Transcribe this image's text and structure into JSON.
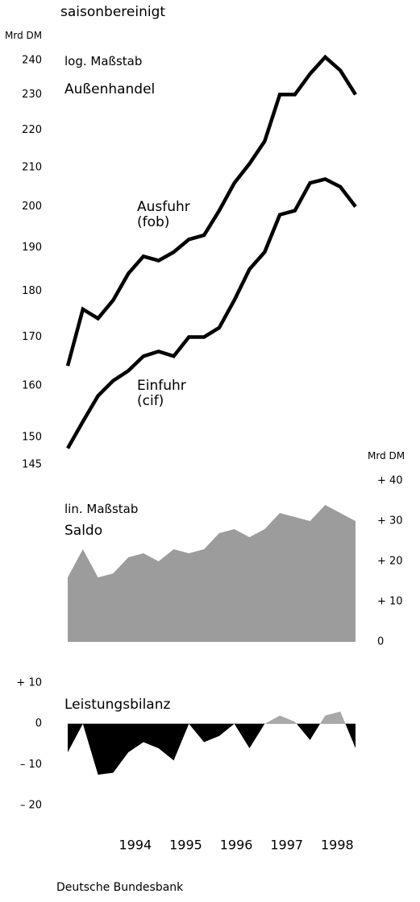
{
  "chart_data": [
    {
      "type": "line",
      "subtitle": "saisonbereinigt",
      "y_label": "Mrd DM",
      "scale_label": "log. Maßstab",
      "title": "Außenhandel",
      "yscale": "log",
      "ylim": [
        145,
        240
      ],
      "yticks": [
        145,
        150,
        160,
        170,
        180,
        190,
        200,
        210,
        220,
        230,
        240
      ],
      "xlim": [
        1993.3,
        1999.0
      ],
      "x": [
        1993.3,
        1993.6,
        1993.9,
        1994.2,
        1994.5,
        1994.8,
        1995.1,
        1995.4,
        1995.7,
        1996.0,
        1996.3,
        1996.6,
        1996.9,
        1997.2,
        1997.5,
        1997.8,
        1998.1,
        1998.4,
        1998.7,
        1999.0
      ],
      "series": [
        {
          "name": "Ausfuhr (fob)",
          "color": "#000000",
          "values": [
            164,
            176,
            174,
            178,
            184,
            188,
            187,
            189,
            192,
            193,
            199,
            206,
            211,
            217,
            230,
            230,
            236,
            241,
            237,
            230
          ]
        },
        {
          "name": "Einfuhr (cif)",
          "color": "#000000",
          "values": [
            148,
            153,
            158,
            161,
            163,
            166,
            167,
            166,
            170,
            170,
            172,
            178,
            185,
            189,
            198,
            199,
            206,
            207,
            205,
            200
          ]
        }
      ]
    },
    {
      "type": "area",
      "scale_label": "lin. Maßstab",
      "title": "Saldo",
      "y2_label": "Mrd DM",
      "y2lim": [
        0,
        40
      ],
      "y2ticks": [
        0,
        {
          "value": 10,
          "label": "+ 10"
        },
        {
          "value": 20,
          "label": "+ 20"
        },
        {
          "value": 30,
          "label": "+ 30"
        },
        {
          "value": 40,
          "label": "+ 40"
        }
      ],
      "xlim": [
        1993.3,
        1999.0
      ],
      "x": [
        1993.3,
        1993.6,
        1993.9,
        1994.2,
        1994.5,
        1994.8,
        1995.1,
        1995.4,
        1995.7,
        1996.0,
        1996.3,
        1996.6,
        1996.9,
        1997.2,
        1997.5,
        1997.8,
        1998.1,
        1998.4,
        1998.7,
        1999.0
      ],
      "axis": "y2",
      "color": "#9c9c9c",
      "values": [
        16,
        23,
        16,
        17,
        21,
        22,
        20,
        23,
        22,
        23,
        27,
        28,
        26,
        28,
        32,
        31,
        30,
        34,
        32,
        30
      ]
    },
    {
      "type": "area",
      "title": "Leistungsbilanz",
      "ylim": [
        -20,
        10
      ],
      "yticks": [
        {
          "value": -20,
          "label": "– 20"
        },
        {
          "value": -10,
          "label": "– 10"
        },
        0,
        {
          "value": 10,
          "label": "+ 10"
        }
      ],
      "xlim": [
        1993.3,
        1999.0
      ],
      "x": [
        1993.3,
        1993.6,
        1993.9,
        1994.2,
        1994.5,
        1994.8,
        1995.1,
        1995.4,
        1995.7,
        1996.0,
        1996.3,
        1996.6,
        1996.9,
        1997.2,
        1997.5,
        1997.8,
        1998.1,
        1998.4,
        1998.7,
        1999.0
      ],
      "xticks": [
        1994,
        1995,
        1996,
        1997,
        1998
      ],
      "color": "#000000",
      "positive_color": "#a8a8a8",
      "values": [
        -7,
        0,
        -12.5,
        -12,
        -7,
        -4.5,
        -6,
        -9,
        0,
        -4.5,
        -3,
        0,
        -6,
        0,
        2,
        0.5,
        -4,
        2,
        3,
        -6
      ],
      "source": "Deutsche Bundesbank"
    }
  ]
}
